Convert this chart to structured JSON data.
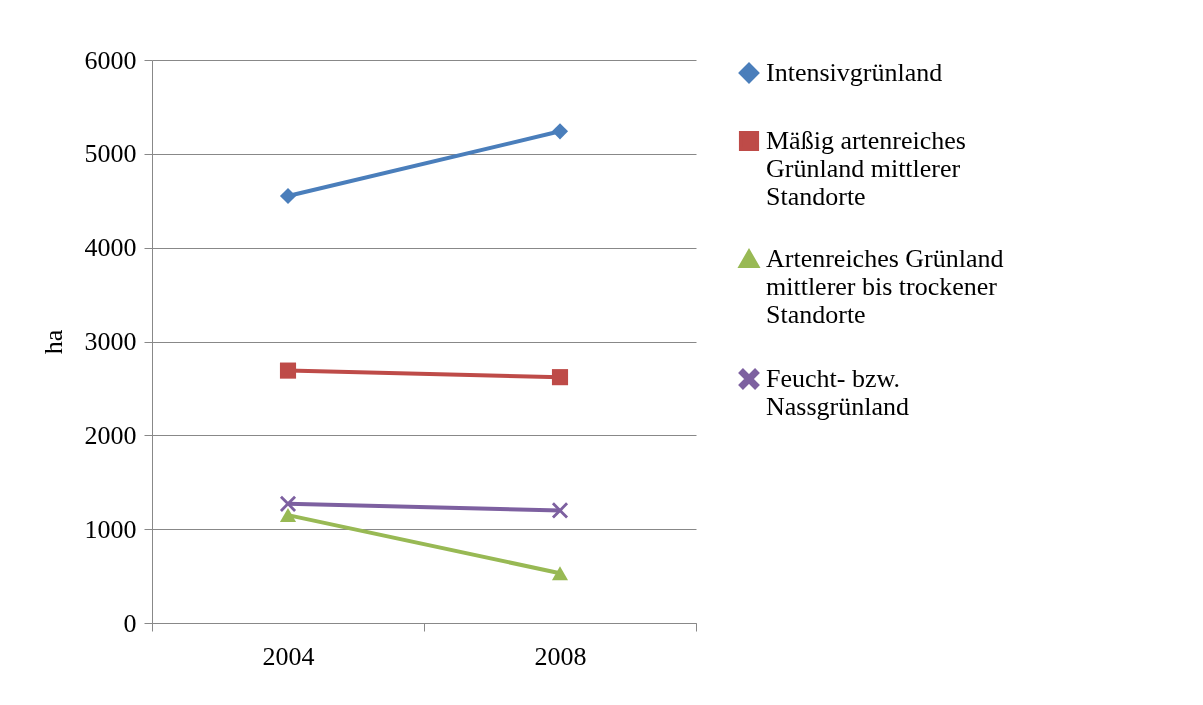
{
  "chart_data": {
    "type": "line",
    "ylabel": "ha",
    "categories": [
      "2004",
      "2008"
    ],
    "series": [
      {
        "name": "Intensivgrünland",
        "color": "#4a7ebb",
        "marker": "diamond",
        "values": [
          4550,
          5240
        ]
      },
      {
        "name": "Mäßig artenreiches Grünland mittlerer Standorte",
        "color": "#be4b48",
        "marker": "square",
        "values": [
          2690,
          2620
        ]
      },
      {
        "name": "Artenreiches Grünland mittlerer bis trockener Standorte",
        "color": "#98b954",
        "marker": "triangle",
        "values": [
          1150,
          530
        ]
      },
      {
        "name": "Feucht- bzw. Nassgrünland",
        "color": "#7d60a0",
        "marker": "cross",
        "values": [
          1270,
          1200
        ]
      }
    ],
    "ylim": [
      0,
      6000
    ],
    "yticks": [
      0,
      1000,
      2000,
      3000,
      4000,
      5000,
      6000
    ],
    "grid": "y",
    "legend": "right",
    "line_style": "solid"
  }
}
